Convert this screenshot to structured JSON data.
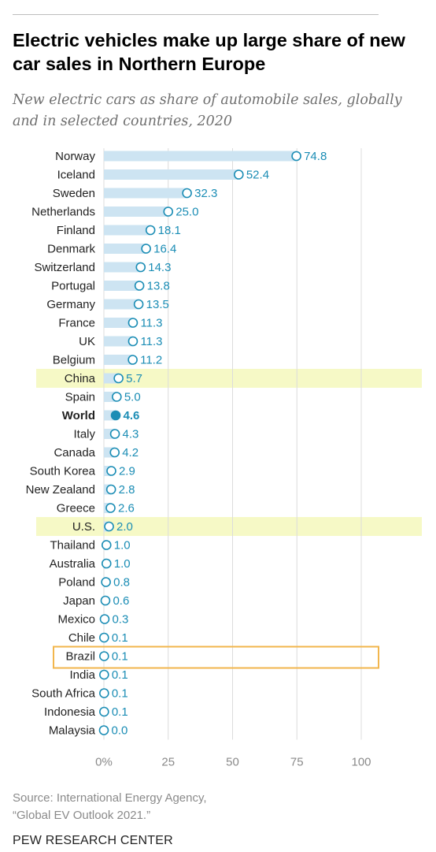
{
  "title": "Electric vehicles make up large share of new car sales in Northern Europe",
  "subtitle": "New electric cars as share of automobile sales, globally and in selected countries, 2020",
  "source_line1": "Source: International Energy Agency,",
  "source_line2": "“Global EV Outlook 2021.”",
  "brand": "PEW RESEARCH CENTER",
  "colors": {
    "dot": "#1b8db5",
    "bar": "#cde4f2",
    "value_text": "#1b8db5",
    "highlight_fill": "#f6f9c6",
    "brazil_box": "#f2b64d",
    "gridline": "#dcdcdc"
  },
  "chart_data": {
    "type": "bar",
    "title": "Electric vehicles make up large share of new car sales in Northern Europe",
    "subtitle": "New electric cars as share of automobile sales, globally and in selected countries, 2020",
    "categories": [
      "Norway",
      "Iceland",
      "Sweden",
      "Netherlands",
      "Finland",
      "Denmark",
      "Switzerland",
      "Portugal",
      "Germany",
      "France",
      "UK",
      "Belgium",
      "China",
      "Spain",
      "World",
      "Italy",
      "Canada",
      "South Korea",
      "New Zealand",
      "Greece",
      "U.S.",
      "Thailand",
      "Australia",
      "Poland",
      "Japan",
      "Mexico",
      "Chile",
      "Brazil",
      "India",
      "South Africa",
      "Indonesia",
      "Malaysia"
    ],
    "values": [
      74.8,
      52.4,
      32.3,
      25.0,
      18.1,
      16.4,
      14.3,
      13.8,
      13.5,
      11.3,
      11.3,
      11.2,
      5.7,
      5.0,
      4.6,
      4.3,
      4.2,
      2.9,
      2.8,
      2.6,
      2.0,
      1.0,
      1.0,
      0.8,
      0.6,
      0.3,
      0.1,
      0.1,
      0.1,
      0.1,
      0.1,
      0.0
    ],
    "value_labels": [
      "74.8",
      "52.4",
      "32.3",
      "25.0",
      "18.1",
      "16.4",
      "14.3",
      "13.8",
      "13.5",
      "11.3",
      "11.3",
      "11.2",
      "5.7",
      "5.0",
      "4.6",
      "4.3",
      "4.2",
      "2.9",
      "2.8",
      "2.6",
      "2.0",
      "1.0",
      "1.0",
      "0.8",
      "0.6",
      "0.3",
      "0.1",
      "0.1",
      "0.1",
      "0.1",
      "0.1",
      "0.0"
    ],
    "xlim": [
      0,
      100
    ],
    "xticks": [
      0,
      25,
      50,
      75,
      100
    ],
    "xtick_labels": [
      "0%",
      "25",
      "50",
      "75",
      "100"
    ],
    "highlight_fill": [
      "China",
      "U.S."
    ],
    "highlight_box": [
      "Brazil"
    ],
    "bold": [
      "World"
    ],
    "filled_dot": [
      "World"
    ],
    "grid": true,
    "legend": "none"
  }
}
